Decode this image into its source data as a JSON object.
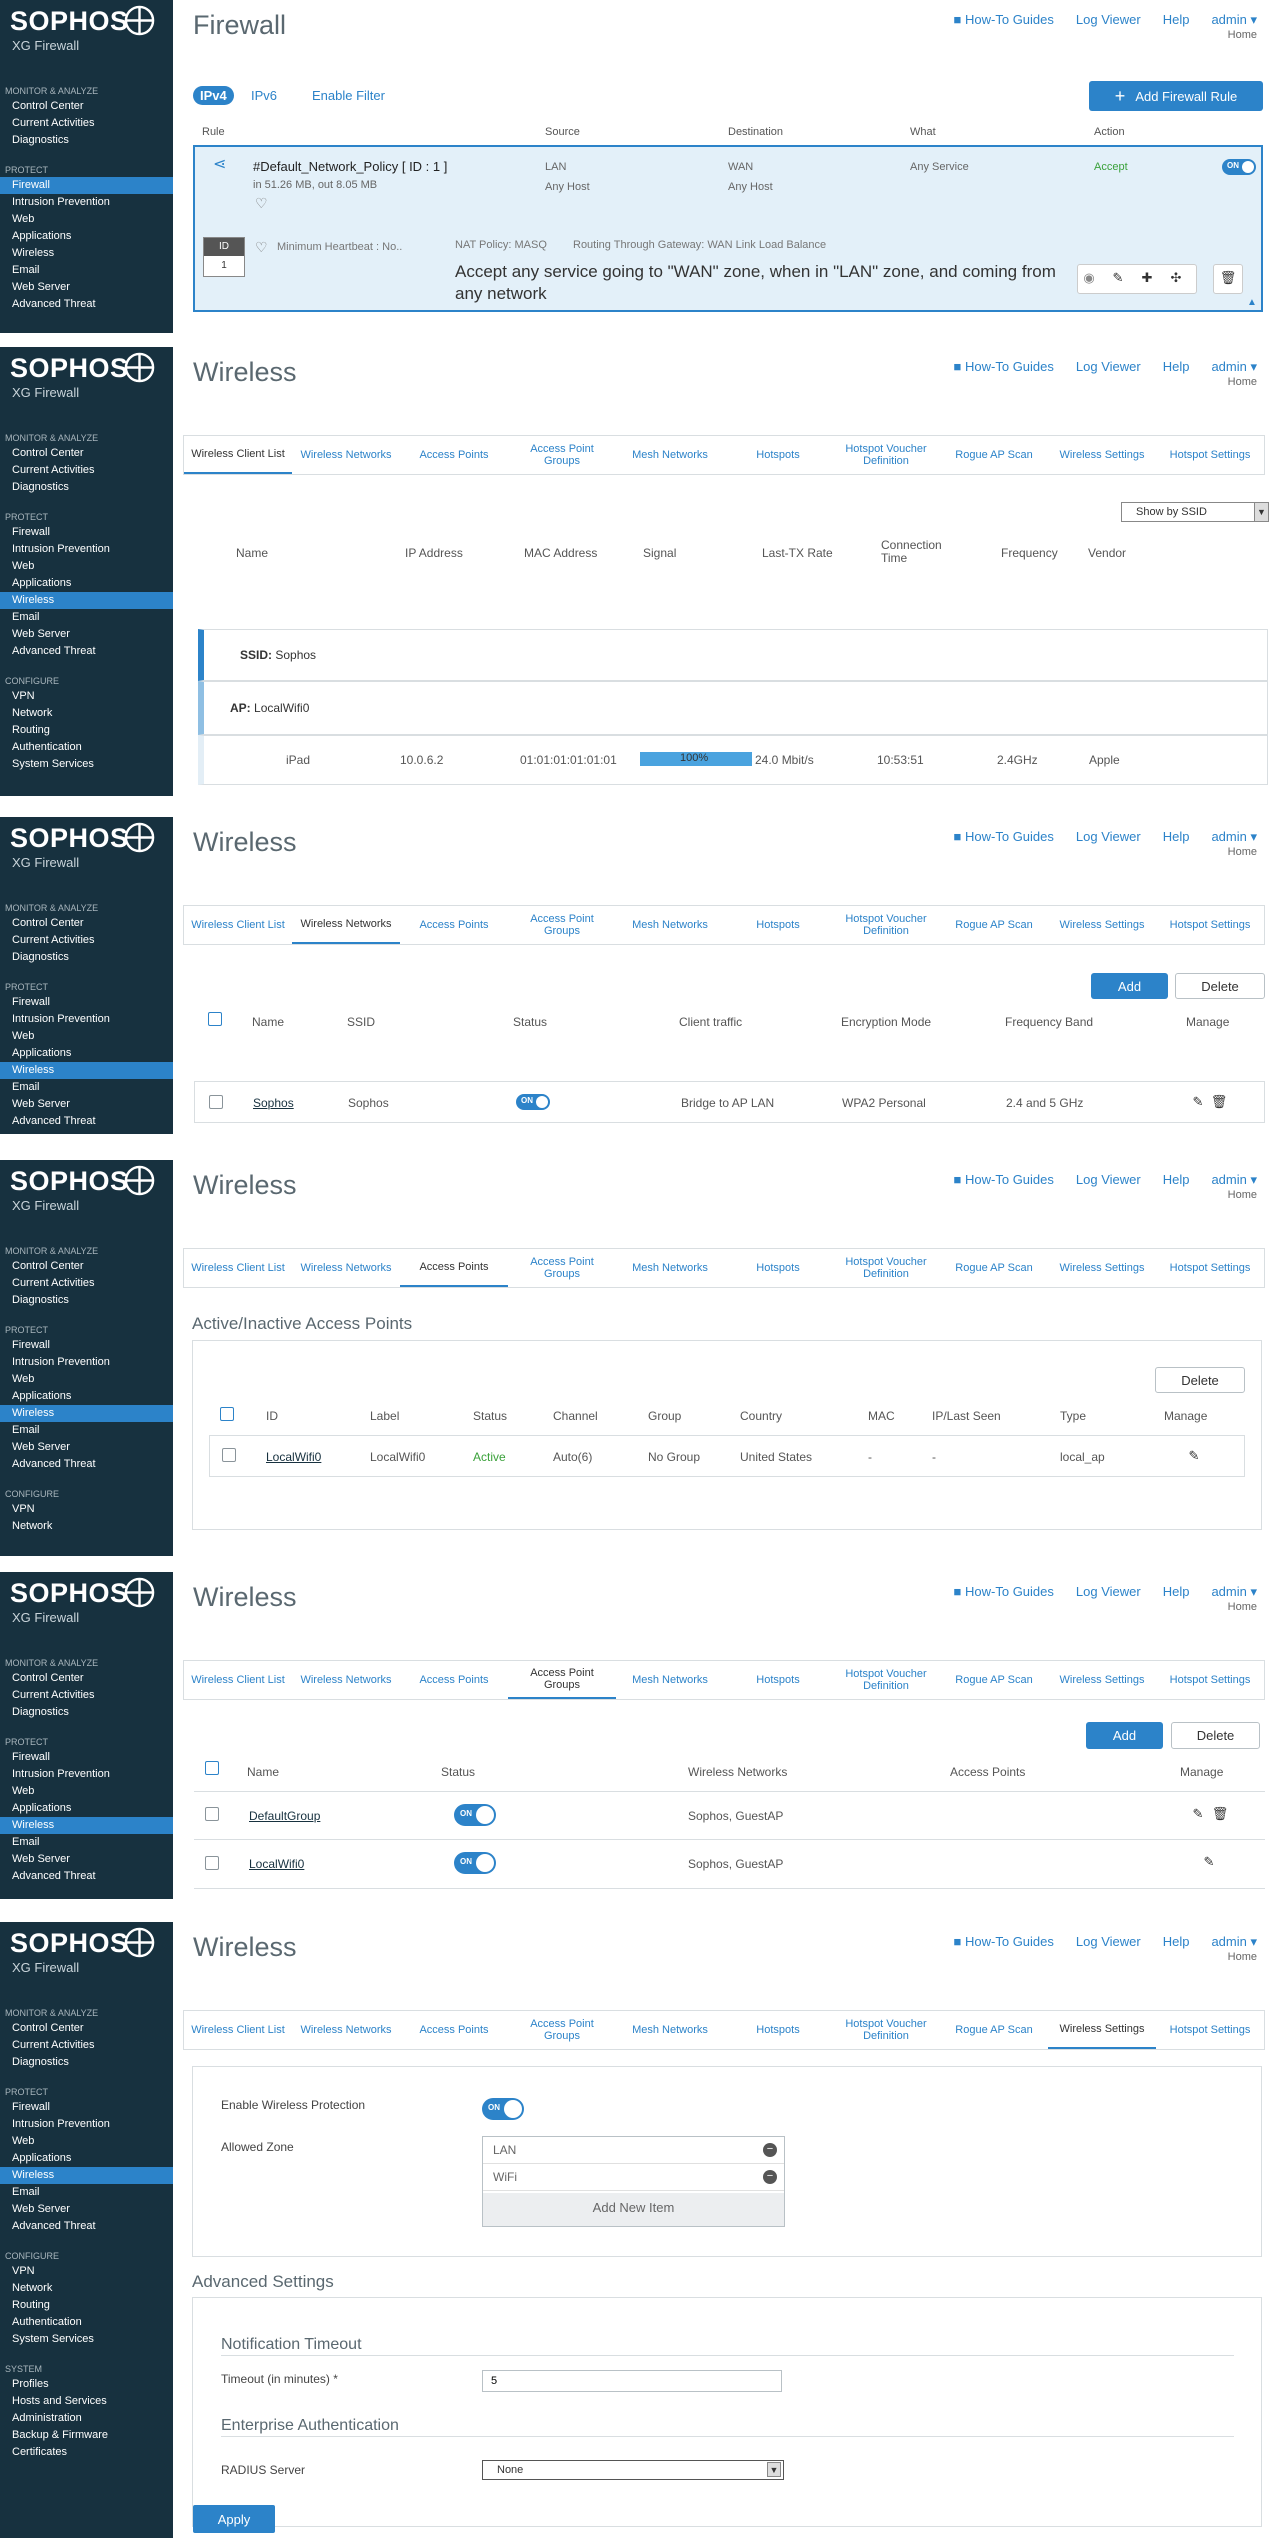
{
  "brand": {
    "logo": "SOPHOS",
    "product": "XG Firewall"
  },
  "topnav": {
    "howto": "How-To Guides",
    "logviewer": "Log Viewer",
    "help": "Help",
    "admin": "admin ▾",
    "home": "Home"
  },
  "nav": {
    "monitor": "MONITOR & ANALYZE",
    "control_center": "Control Center",
    "current_activities": "Current Activities",
    "diagnostics": "Diagnostics",
    "protect": "PROTECT",
    "firewall": "Firewall",
    "ips": "Intrusion Prevention",
    "web": "Web",
    "applications": "Applications",
    "wireless": "Wireless",
    "email": "Email",
    "web_server": "Web Server",
    "advanced_threat": "Advanced Threat",
    "configure": "CONFIGURE",
    "vpn": "VPN",
    "network": "Network",
    "routing": "Routing",
    "authentication": "Authentication",
    "system_services": "System Services",
    "system": "SYSTEM",
    "profiles": "Profiles",
    "hosts_services": "Hosts and Services",
    "administration": "Administration",
    "backup_firmware": "Backup & Firmware",
    "certificates": "Certificates"
  },
  "tabs": [
    "Wireless Client List",
    "Wireless Networks",
    "Access Points",
    "Access Point Groups",
    "Mesh Networks",
    "Hotspots",
    "Hotspot Voucher Definition",
    "Rogue AP Scan",
    "Wireless Settings",
    "Hotspot Settings"
  ],
  "firewall": {
    "title": "Firewall",
    "ipv4": "IPv4",
    "ipv6": "IPv6",
    "enable_filter": "Enable Filter",
    "add_rule": "Add Firewall Rule",
    "cols": {
      "rule": "Rule",
      "source": "Source",
      "destination": "Destination",
      "what": "What",
      "action": "Action"
    },
    "rule": {
      "name": "#Default_Network_Policy [ ID : 1 ]",
      "traffic": "in 51.26 MB, out 8.05 MB",
      "src1": "LAN",
      "src2": "Any Host",
      "dst1": "WAN",
      "dst2": "Any Host",
      "what": "Any Service",
      "action": "Accept",
      "toggle": "ON",
      "id_label": "ID",
      "id_value": "1",
      "heartbeat": "Minimum Heartbeat : No..",
      "nat": "NAT Policy: MASQ",
      "routing": "Routing Through Gateway: WAN Link Load Balance",
      "description": "Accept any service going to \"WAN\" zone, when in \"LAN\" zone, and coming from any network"
    }
  },
  "wireless_title": "Wireless",
  "client_list": {
    "show_by": "Show by SSID",
    "cols": [
      "Name",
      "IP Address",
      "MAC Address",
      "Signal",
      "Last-TX Rate",
      "Connection Time",
      "Frequency",
      "Vendor"
    ],
    "ssid_label": "SSID:",
    "ssid": "Sophos",
    "ap_label": "AP:",
    "ap": "LocalWifi0",
    "client": {
      "name": "iPad",
      "ip": "10.0.6.2",
      "mac": "01:01:01:01:01:01",
      "signal": "100%",
      "signal_pct": 100,
      "rate": "24.0 Mbit/s",
      "time": "10:53:51",
      "freq": "2.4GHz",
      "vendor": "Apple"
    }
  },
  "networks": {
    "add": "Add",
    "delete": "Delete",
    "cols": [
      "Name",
      "SSID",
      "Status",
      "Client traffic",
      "Encryption Mode",
      "Frequency Band",
      "Manage"
    ],
    "row": {
      "name": "Sophos",
      "ssid": "Sophos",
      "status": "ON",
      "traffic": "Bridge to AP LAN",
      "enc": "WPA2 Personal",
      "band": "2.4 and 5 GHz"
    }
  },
  "aps": {
    "heading": "Active/Inactive Access Points",
    "delete": "Delete",
    "cols": [
      "ID",
      "Label",
      "Status",
      "Channel",
      "Group",
      "Country",
      "MAC",
      "IP/Last Seen",
      "Type",
      "Manage"
    ],
    "row": {
      "id": "LocalWifi0",
      "label": "LocalWifi0",
      "status": "Active",
      "channel": "Auto(6)",
      "group": "No Group",
      "country": "United States",
      "mac": "-",
      "ip": "-",
      "type": "local_ap"
    }
  },
  "apgroups": {
    "add": "Add",
    "delete": "Delete",
    "cols": [
      "Name",
      "Status",
      "Wireless Networks",
      "Access Points",
      "Manage"
    ],
    "rows": [
      {
        "name": "DefaultGroup",
        "status": "ON",
        "networks": "Sophos, GuestAP"
      },
      {
        "name": "LocalWifi0",
        "status": "ON",
        "networks": "Sophos, GuestAP"
      }
    ]
  },
  "settings": {
    "enable_label": "Enable Wireless Protection",
    "enable_toggle": "ON",
    "zone_label": "Allowed Zone",
    "zones": [
      "LAN",
      "WiFi"
    ],
    "add_item": "Add New Item",
    "advanced": "Advanced Settings",
    "notif": "Notification Timeout",
    "timeout_label": "Timeout (in minutes) *",
    "timeout": "5",
    "enterprise": "Enterprise Authentication",
    "radius_label": "RADIUS Server",
    "radius": "None",
    "apply": "Apply"
  }
}
